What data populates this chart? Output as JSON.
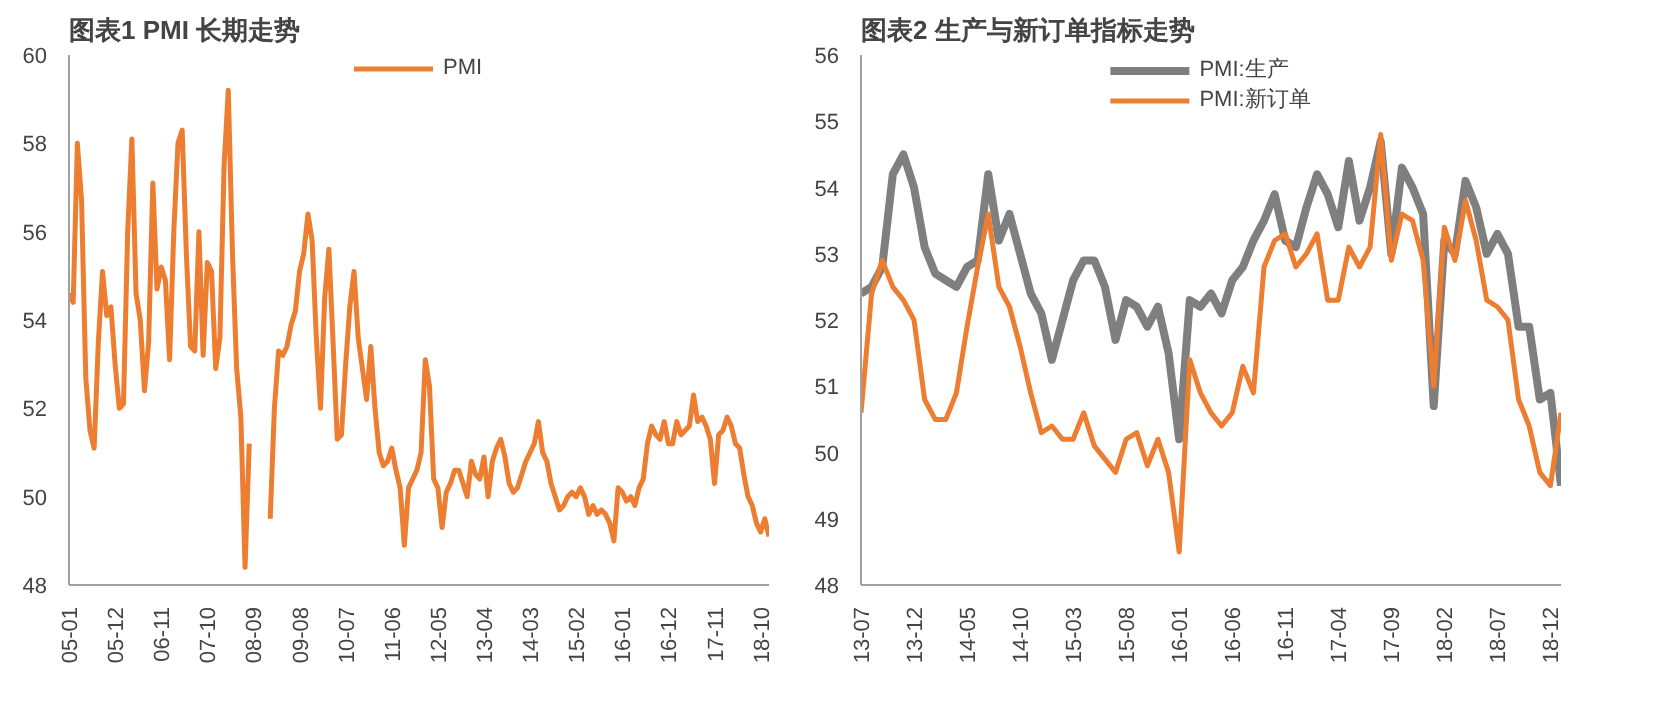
{
  "chart_data": [
    {
      "type": "line",
      "title": "图表1      PMI 长期走势",
      "legend": "top",
      "grid": false,
      "categories": [
        "05-01",
        null,
        null,
        null,
        null,
        null,
        null,
        null,
        null,
        null,
        null,
        "05-12",
        null,
        null,
        null,
        null,
        null,
        null,
        null,
        null,
        null,
        null,
        "06-11",
        null,
        null,
        null,
        null,
        null,
        null,
        null,
        null,
        null,
        null,
        "07-10",
        null,
        null,
        null,
        null,
        null,
        null,
        null,
        null,
        null,
        null,
        "08-09",
        null,
        null,
        null,
        null,
        null,
        null,
        null,
        null,
        null,
        null,
        "09-08",
        null,
        null,
        null,
        null,
        null,
        null,
        null,
        null,
        null,
        null,
        "10-07",
        null,
        null,
        null,
        null,
        null,
        null,
        null,
        null,
        null,
        null,
        "11-06",
        null,
        null,
        null,
        null,
        null,
        null,
        null,
        null,
        null,
        null,
        "12-05",
        null,
        null,
        null,
        null,
        null,
        null,
        null,
        null,
        null,
        null,
        "13-04",
        null,
        null,
        null,
        null,
        null,
        null,
        null,
        null,
        null,
        null,
        "14-03",
        null,
        null,
        null,
        null,
        null,
        null,
        null,
        null,
        null,
        null,
        "15-02",
        null,
        null,
        null,
        null,
        null,
        null,
        null,
        null,
        null,
        null,
        "16-01",
        null,
        null,
        null,
        null,
        null,
        null,
        null,
        null,
        null,
        null,
        "16-12",
        null,
        null,
        null,
        null,
        null,
        null,
        null,
        null,
        null,
        null,
        "17-11",
        null,
        null,
        null,
        null,
        null,
        null,
        null,
        null,
        null,
        null,
        "18-10",
        null,
        null
      ],
      "series": [
        {
          "name": "PMI",
          "color": "#ed7d31",
          "values": [
            54.6,
            54.4,
            58.0,
            56.7,
            52.7,
            51.5,
            51.1,
            53.5,
            55.1,
            54.1,
            54.3,
            53.0,
            52.0,
            52.1,
            56.0,
            58.1,
            54.6,
            54.0,
            52.4,
            53.5,
            57.1,
            54.7,
            55.2,
            54.9,
            53.1,
            56.0,
            58.0,
            58.3,
            55.5,
            53.4,
            53.3,
            56.0,
            53.2,
            55.3,
            55.1,
            52.9,
            53.6,
            57.5,
            59.2,
            55.5,
            52.9,
            51.8,
            48.4,
            51.2,
            null,
            null,
            null,
            null,
            49.5,
            52.0,
            53.3,
            53.2,
            53.4,
            53.9,
            54.2,
            55.1,
            55.5,
            56.4,
            55.8,
            53.6,
            52.0,
            54.5,
            55.6,
            53.5,
            51.3,
            51.4,
            53.0,
            54.3,
            55.1,
            53.6,
            52.9,
            52.2,
            53.4,
            52.0,
            51.0,
            50.7,
            50.8,
            51.1,
            50.6,
            50.2,
            48.9,
            50.2,
            50.4,
            50.6,
            51.0,
            53.1,
            52.5,
            50.4,
            50.2,
            49.3,
            50.1,
            50.3,
            50.6,
            50.6,
            50.3,
            50.0,
            50.8,
            50.5,
            50.4,
            50.9,
            50.0,
            50.8,
            51.1,
            51.3,
            50.9,
            50.3,
            50.1,
            50.2,
            50.5,
            50.8,
            51.0,
            51.2,
            51.7,
            51.0,
            50.8,
            50.3,
            50.0,
            49.7,
            49.8,
            50.0,
            50.1,
            50.0,
            50.2,
            50.0,
            49.6,
            49.8,
            49.6,
            49.7,
            49.6,
            49.4,
            49.0,
            50.2,
            50.1,
            49.9,
            50.0,
            49.8,
            50.2,
            50.4,
            51.2,
            51.6,
            51.4,
            51.3,
            51.7,
            51.2,
            51.2,
            51.7,
            51.4,
            51.5,
            51.6,
            52.3,
            51.7,
            51.8,
            51.6,
            51.3,
            50.3,
            51.4,
            51.5,
            51.8,
            51.6,
            51.2,
            51.1,
            50.5,
            50.0,
            49.8,
            49.4,
            49.2,
            49.5,
            49.1
          ]
        }
      ],
      "ylim": [
        48,
        60
      ],
      "yticks": [
        48,
        50,
        52,
        54,
        56,
        58,
        60
      ]
    },
    {
      "type": "line",
      "title": "图表2      生产与新订单指标走势",
      "legend": "top",
      "grid": false,
      "categories": [
        "13-07",
        null,
        null,
        null,
        null,
        "13-12",
        null,
        null,
        null,
        null,
        "14-05",
        null,
        null,
        null,
        null,
        "14-10",
        null,
        null,
        null,
        null,
        "15-03",
        null,
        null,
        null,
        null,
        "15-08",
        null,
        null,
        null,
        null,
        "16-01",
        null,
        null,
        null,
        null,
        "16-06",
        null,
        null,
        null,
        null,
        "16-11",
        null,
        null,
        null,
        null,
        "17-04",
        null,
        null,
        null,
        null,
        "17-09",
        null,
        null,
        null,
        null,
        "18-02",
        null,
        null,
        null,
        null,
        "18-07",
        null,
        null,
        null,
        null,
        "18-12",
        null
      ],
      "series": [
        {
          "name": "PMI:生产",
          "color": "#7f7f7f",
          "values": [
            52.4,
            52.5,
            52.8,
            54.2,
            54.5,
            54.0,
            53.1,
            52.7,
            52.6,
            52.5,
            52.8,
            52.9,
            54.2,
            53.2,
            53.6,
            53.0,
            52.4,
            52.1,
            51.4,
            52.0,
            52.6,
            52.9,
            52.9,
            52.5,
            51.7,
            52.3,
            52.2,
            51.9,
            52.2,
            51.5,
            50.2,
            52.3,
            52.2,
            52.4,
            52.1,
            52.6,
            52.8,
            53.2,
            53.5,
            53.9,
            53.2,
            53.1,
            53.7,
            54.2,
            53.9,
            53.4,
            54.4,
            53.5,
            54.0,
            54.7,
            53.0,
            54.3,
            54.0,
            53.6,
            50.7,
            53.2,
            53.0,
            54.1,
            53.7,
            53.0,
            53.3,
            53.0,
            51.9,
            51.9,
            50.8,
            50.9,
            49.5
          ]
        },
        {
          "name": "PMI:新订单",
          "color": "#ed7d31",
          "values": [
            50.6,
            52.4,
            52.9,
            52.5,
            52.3,
            52.0,
            50.8,
            50.5,
            50.5,
            50.9,
            51.9,
            52.8,
            53.6,
            52.5,
            52.2,
            51.6,
            50.9,
            50.3,
            50.4,
            50.2,
            50.2,
            50.6,
            50.1,
            49.9,
            49.7,
            50.2,
            50.3,
            49.8,
            50.2,
            49.7,
            48.5,
            51.4,
            50.9,
            50.6,
            50.4,
            50.6,
            51.3,
            50.9,
            52.8,
            53.2,
            53.3,
            52.8,
            53.0,
            53.3,
            52.3,
            52.3,
            53.1,
            52.8,
            53.1,
            54.8,
            52.9,
            53.6,
            53.5,
            52.9,
            51.0,
            53.4,
            52.9,
            53.8,
            53.2,
            52.3,
            52.2,
            52.0,
            50.8,
            50.4,
            49.7,
            49.5,
            50.6
          ]
        }
      ],
      "ylim": [
        48,
        56
      ],
      "yticks": [
        48,
        49,
        50,
        51,
        52,
        53,
        54,
        55,
        56
      ]
    }
  ]
}
